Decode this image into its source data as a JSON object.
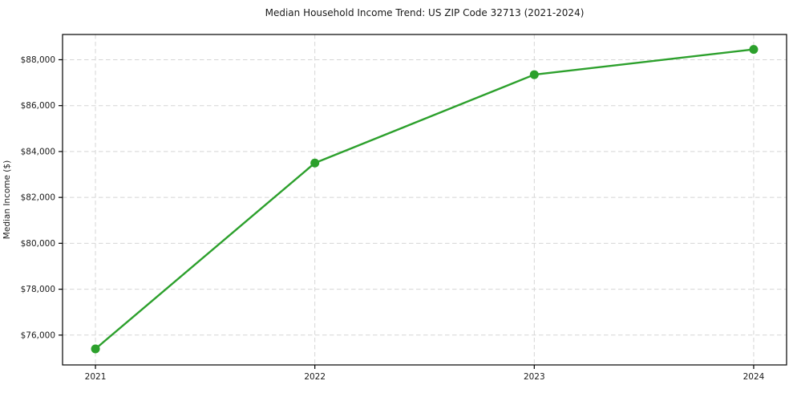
{
  "chart": {
    "title": "Median Household Income Trend: US ZIP Code 32713 (2021-2024)",
    "ylabel": "Median Income ($)"
  },
  "chart_data": {
    "type": "line",
    "title": "Median Household Income Trend: US ZIP Code 32713 (2021-2024)",
    "xlabel": "",
    "ylabel": "Median Income ($)",
    "x": [
      2021,
      2022,
      2023,
      2024
    ],
    "categories": [
      "2021",
      "2022",
      "2023",
      "2024"
    ],
    "series": [
      {
        "name": "Median Household Income",
        "values": [
          75400,
          83500,
          87350,
          88450
        ]
      }
    ],
    "y_ticks": [
      76000,
      78000,
      80000,
      82000,
      84000,
      86000,
      88000
    ],
    "y_tick_labels": [
      "$76,000",
      "$78,000",
      "$80,000",
      "$82,000",
      "$84,000",
      "$86,000",
      "$88,000"
    ],
    "x_tick_labels": [
      "2021",
      "2022",
      "2023",
      "2024"
    ],
    "xlim": [
      2020.85,
      2024.15
    ],
    "ylim": [
      74700,
      89100
    ],
    "grid": true,
    "grid_style": "dashed",
    "legend": false,
    "line_color": "#2ca02c",
    "marker": "circle",
    "marker_radius": 5.5,
    "line_width": 2.4,
    "grid_color": "#d5d5d5",
    "frame_color": "#000000",
    "background_color": "#ffffff"
  }
}
